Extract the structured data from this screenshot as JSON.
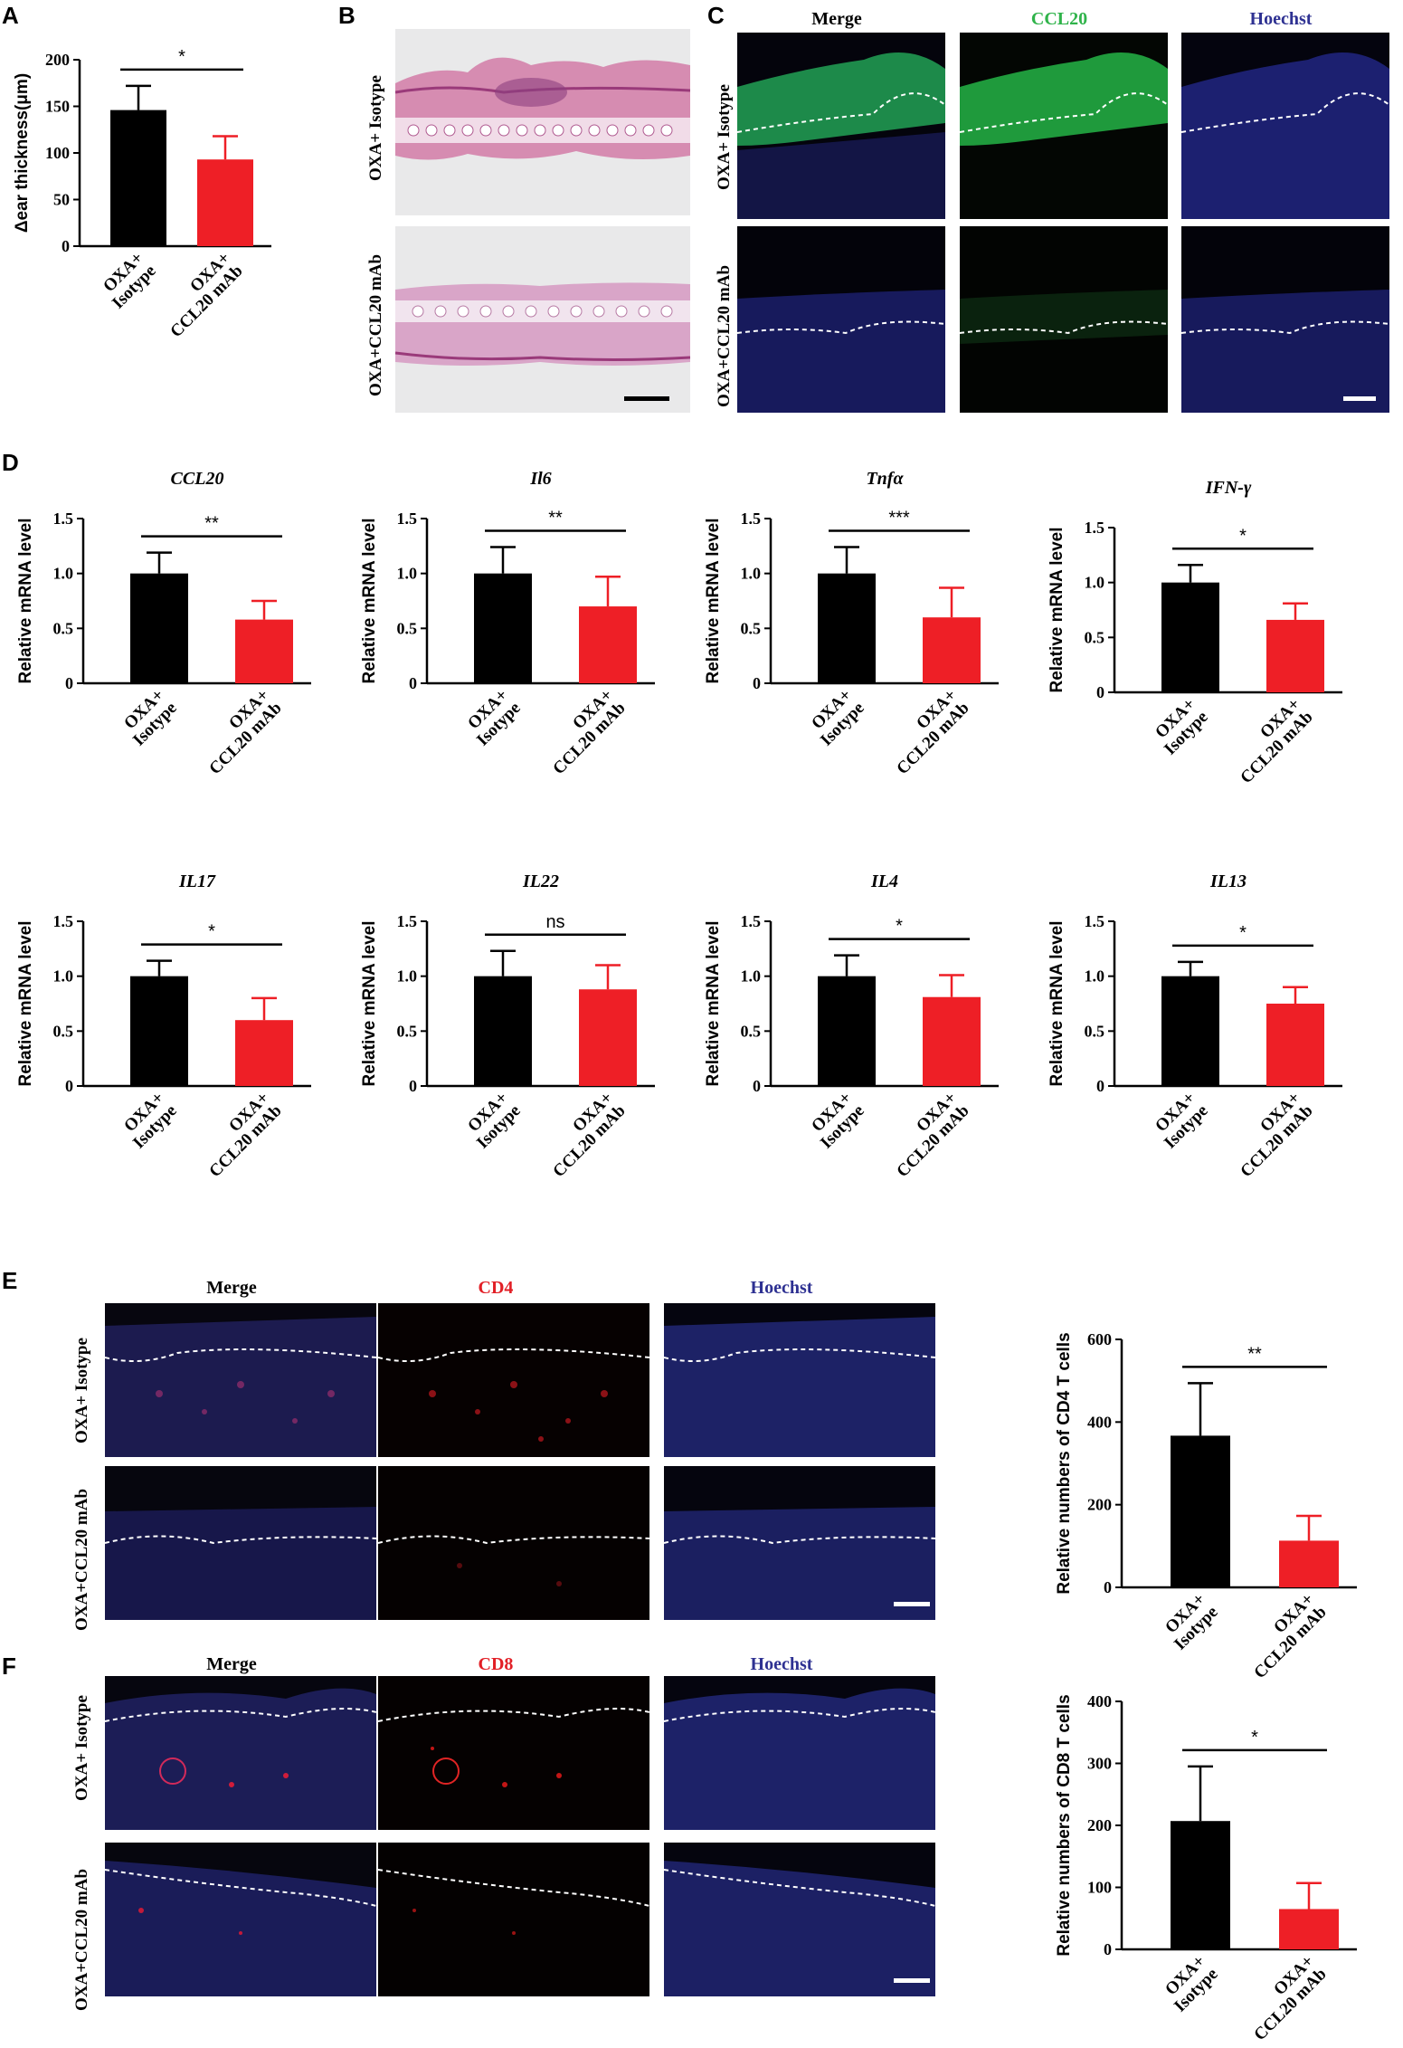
{
  "panel_letters": {
    "A": "A",
    "B": "B",
    "C": "C",
    "D": "D",
    "E": "E",
    "F": "F"
  },
  "colors": {
    "control": "#000000",
    "treatment": "#ee1f26",
    "ccl20_label": "#2fb34a",
    "cd_label": "#e21f26",
    "hoechst_label": "#2e3192"
  },
  "panel_B": {
    "row_labels": [
      "OXA+ Isotype",
      "OXA+CCL20 mAb"
    ]
  },
  "panel_C": {
    "columns": [
      "Merge",
      "CCL20",
      "Hoechst"
    ],
    "row_labels": [
      "OXA+ Isotype",
      "OXA+CCL20 mAb"
    ]
  },
  "panel_E": {
    "columns": [
      "Merge",
      "CD4",
      "Hoechst"
    ],
    "row_labels": [
      "OXA+ Isotype",
      "OXA+CCL20 mAb"
    ]
  },
  "panel_F": {
    "columns": [
      "Merge",
      "CD8",
      "Hoechst"
    ],
    "row_labels": [
      "OXA+ Isotype",
      "OXA+CCL20 mAb"
    ]
  },
  "chart_data": [
    {
      "id": "A",
      "type": "bar",
      "title": "",
      "ylabel": "Δear thickness(μm)",
      "ylim": [
        0,
        200
      ],
      "yticks": [
        0,
        50,
        100,
        150,
        200
      ],
      "categories": [
        [
          "OXA+",
          "Isotype"
        ],
        [
          "OXA+",
          "CCL20 mAb"
        ]
      ],
      "values": [
        146,
        93
      ],
      "errors": [
        26,
        25
      ],
      "significance": "*"
    },
    {
      "id": "D1",
      "type": "bar",
      "title": "CCL20",
      "ylabel": "Relative mRNA level",
      "ylim": [
        0,
        1.5
      ],
      "yticks": [
        "0",
        "0.5",
        "1.0",
        "1.5"
      ],
      "categories": [
        [
          "OXA+",
          "Isotype"
        ],
        [
          "OXA+",
          "CCL20 mAb"
        ]
      ],
      "values": [
        1.0,
        0.58
      ],
      "errors": [
        0.19,
        0.17
      ],
      "significance": "**"
    },
    {
      "id": "D2",
      "type": "bar",
      "title": "Il6",
      "ylabel": "Relative mRNA level",
      "ylim": [
        0,
        1.5
      ],
      "yticks": [
        "0",
        "0.5",
        "1.0",
        "1.5"
      ],
      "categories": [
        [
          "OXA+",
          "Isotype"
        ],
        [
          "OXA+",
          "CCL20 mAb"
        ]
      ],
      "values": [
        1.0,
        0.7
      ],
      "errors": [
        0.24,
        0.27
      ],
      "significance": "**"
    },
    {
      "id": "D3",
      "type": "bar",
      "title": "Tnfα",
      "ylabel": "Relative mRNA level",
      "ylim": [
        0,
        1.5
      ],
      "yticks": [
        "0",
        "0.5",
        "1.0",
        "1.5"
      ],
      "categories": [
        [
          "OXA+",
          "Isotype"
        ],
        [
          "OXA+",
          "CCL20 mAb"
        ]
      ],
      "values": [
        1.0,
        0.6
      ],
      "errors": [
        0.24,
        0.27
      ],
      "significance": "***"
    },
    {
      "id": "D4",
      "type": "bar",
      "title": "IFN-γ",
      "ylabel": "Relative mRNA level",
      "ylim": [
        0,
        1.5
      ],
      "yticks": [
        "0",
        "0.5",
        "1.0",
        "1.5"
      ],
      "categories": [
        [
          "OXA+",
          "Isotype"
        ],
        [
          "OXA+",
          "CCL20 mAb"
        ]
      ],
      "values": [
        1.0,
        0.66
      ],
      "errors": [
        0.16,
        0.15
      ],
      "significance": "*"
    },
    {
      "id": "D5",
      "type": "bar",
      "title": "IL17",
      "ylabel": "Relative mRNA level",
      "ylim": [
        0,
        1.5
      ],
      "yticks": [
        "0",
        "0.5",
        "1.0",
        "1.5"
      ],
      "categories": [
        [
          "OXA+",
          "Isotype"
        ],
        [
          "OXA+",
          "CCL20 mAb"
        ]
      ],
      "values": [
        1.0,
        0.6
      ],
      "errors": [
        0.14,
        0.2
      ],
      "significance": "*"
    },
    {
      "id": "D6",
      "type": "bar",
      "title": "IL22",
      "ylabel": "Relative mRNA level",
      "ylim": [
        0,
        1.5
      ],
      "yticks": [
        "0",
        "0.5",
        "1.0",
        "1.5"
      ],
      "categories": [
        [
          "OXA+",
          "Isotype"
        ],
        [
          "OXA+",
          "CCL20 mAb"
        ]
      ],
      "values": [
        1.0,
        0.88
      ],
      "errors": [
        0.23,
        0.22
      ],
      "significance": "ns"
    },
    {
      "id": "D7",
      "type": "bar",
      "title": "IL4",
      "ylabel": "Relative mRNA level",
      "ylim": [
        0,
        1.5
      ],
      "yticks": [
        "0",
        "0.5",
        "1.0",
        "1.5"
      ],
      "categories": [
        [
          "OXA+",
          "Isotype"
        ],
        [
          "OXA+",
          "CCL20 mAb"
        ]
      ],
      "values": [
        1.0,
        0.81
      ],
      "errors": [
        0.19,
        0.2
      ],
      "significance": "*"
    },
    {
      "id": "D8",
      "type": "bar",
      "title": "IL13",
      "ylabel": "Relative mRNA level",
      "ylim": [
        0,
        1.5
      ],
      "yticks": [
        "0",
        "0.5",
        "1.0",
        "1.5"
      ],
      "categories": [
        [
          "OXA+",
          "Isotype"
        ],
        [
          "OXA+",
          "CCL20 mAb"
        ]
      ],
      "values": [
        1.0,
        0.75
      ],
      "errors": [
        0.13,
        0.15
      ],
      "significance": "*"
    },
    {
      "id": "E",
      "type": "bar",
      "title": "",
      "ylabel": "Relative numbers of CD4 T cells",
      "ylim": [
        0,
        600
      ],
      "yticks": [
        "0",
        "200",
        "400",
        "600"
      ],
      "categories": [
        [
          "OXA+",
          "Isotype"
        ],
        [
          "OXA+",
          "CCL20 mAb"
        ]
      ],
      "values": [
        367,
        113
      ],
      "errors": [
        127,
        60
      ],
      "significance": "**"
    },
    {
      "id": "F",
      "type": "bar",
      "title": "",
      "ylabel": "Relative numbers of CD8 T cells",
      "ylim": [
        0,
        400
      ],
      "yticks": [
        "0",
        "100",
        "200",
        "300",
        "400"
      ],
      "categories": [
        [
          "OXA+",
          "Isotype"
        ],
        [
          "OXA+",
          "CCL20 mAb"
        ]
      ],
      "values": [
        207,
        65
      ],
      "errors": [
        88,
        42
      ],
      "significance": "*"
    }
  ]
}
